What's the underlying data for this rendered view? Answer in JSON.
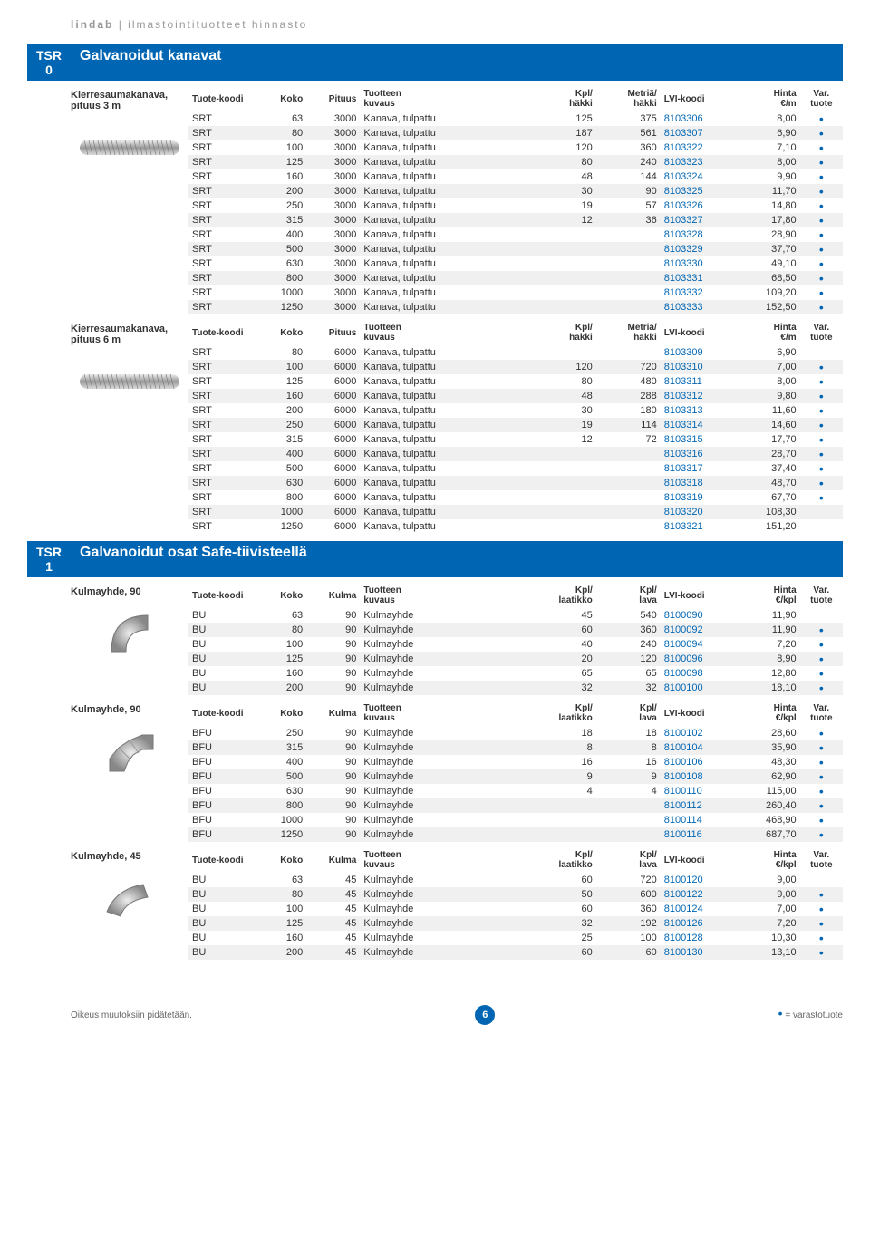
{
  "header": {
    "brand": "lindab",
    "sep": "|",
    "sub": "ilmastointituotteet hinnasto"
  },
  "footer": {
    "left": "Oikeus muutoksiin pidätetään.",
    "page": "6",
    "legend_dot": "•",
    "legend_text": "= varastotuote"
  },
  "sections": [
    {
      "code": "TSR 0",
      "title": "Galvanoidut kanavat"
    },
    {
      "code": "TSR 1",
      "title": "Galvanoidut osat Safe-tiivisteellä"
    }
  ],
  "tables": [
    {
      "label": "Kierresaumakanava, pituus 3 m",
      "img": "spiral",
      "headers": [
        "Tuote-koodi",
        "Koko",
        "Pituus",
        "Tuotteen kuvaus",
        "Kpl/ häkki",
        "Metriä/ häkki",
        "LVI-koodi",
        "Hinta €/m",
        "Var. tuote"
      ],
      "rows": [
        [
          "SRT",
          "63",
          "3000",
          "Kanava, tulpattu",
          "125",
          "375",
          "8103306",
          "8,00",
          "•"
        ],
        [
          "SRT",
          "80",
          "3000",
          "Kanava, tulpattu",
          "187",
          "561",
          "8103307",
          "6,90",
          "•"
        ],
        [
          "SRT",
          "100",
          "3000",
          "Kanava, tulpattu",
          "120",
          "360",
          "8103322",
          "7,10",
          "•"
        ],
        [
          "SRT",
          "125",
          "3000",
          "Kanava, tulpattu",
          "80",
          "240",
          "8103323",
          "8,00",
          "•"
        ],
        [
          "SRT",
          "160",
          "3000",
          "Kanava, tulpattu",
          "48",
          "144",
          "8103324",
          "9,90",
          "•"
        ],
        [
          "SRT",
          "200",
          "3000",
          "Kanava, tulpattu",
          "30",
          "90",
          "8103325",
          "11,70",
          "•"
        ],
        [
          "SRT",
          "250",
          "3000",
          "Kanava, tulpattu",
          "19",
          "57",
          "8103326",
          "14,80",
          "•"
        ],
        [
          "SRT",
          "315",
          "3000",
          "Kanava, tulpattu",
          "12",
          "36",
          "8103327",
          "17,80",
          "•"
        ],
        [
          "SRT",
          "400",
          "3000",
          "Kanava, tulpattu",
          "",
          "",
          "8103328",
          "28,90",
          "•"
        ],
        [
          "SRT",
          "500",
          "3000",
          "Kanava, tulpattu",
          "",
          "",
          "8103329",
          "37,70",
          "•"
        ],
        [
          "SRT",
          "630",
          "3000",
          "Kanava, tulpattu",
          "",
          "",
          "8103330",
          "49,10",
          "•"
        ],
        [
          "SRT",
          "800",
          "3000",
          "Kanava, tulpattu",
          "",
          "",
          "8103331",
          "68,50",
          "•"
        ],
        [
          "SRT",
          "1000",
          "3000",
          "Kanava, tulpattu",
          "",
          "",
          "8103332",
          "109,20",
          "•"
        ],
        [
          "SRT",
          "1250",
          "3000",
          "Kanava, tulpattu",
          "",
          "",
          "8103333",
          "152,50",
          "•"
        ]
      ]
    },
    {
      "label": "Kierresaumakanava, pituus 6 m",
      "img": "spiral",
      "headers": [
        "Tuote-koodi",
        "Koko",
        "Pituus",
        "Tuotteen kuvaus",
        "Kpl/ häkki",
        "Metriä/ häkki",
        "LVI-koodi",
        "Hinta €/m",
        "Var. tuote"
      ],
      "rows": [
        [
          "SRT",
          "80",
          "6000",
          "Kanava, tulpattu",
          "",
          "",
          "8103309",
          "6,90",
          ""
        ],
        [
          "SRT",
          "100",
          "6000",
          "Kanava, tulpattu",
          "120",
          "720",
          "8103310",
          "7,00",
          "•"
        ],
        [
          "SRT",
          "125",
          "6000",
          "Kanava, tulpattu",
          "80",
          "480",
          "8103311",
          "8,00",
          "•"
        ],
        [
          "SRT",
          "160",
          "6000",
          "Kanava, tulpattu",
          "48",
          "288",
          "8103312",
          "9,80",
          "•"
        ],
        [
          "SRT",
          "200",
          "6000",
          "Kanava, tulpattu",
          "30",
          "180",
          "8103313",
          "11,60",
          "•"
        ],
        [
          "SRT",
          "250",
          "6000",
          "Kanava, tulpattu",
          "19",
          "114",
          "8103314",
          "14,60",
          "•"
        ],
        [
          "SRT",
          "315",
          "6000",
          "Kanava, tulpattu",
          "12",
          "72",
          "8103315",
          "17,70",
          "•"
        ],
        [
          "SRT",
          "400",
          "6000",
          "Kanava, tulpattu",
          "",
          "",
          "8103316",
          "28,70",
          "•"
        ],
        [
          "SRT",
          "500",
          "6000",
          "Kanava, tulpattu",
          "",
          "",
          "8103317",
          "37,40",
          "•"
        ],
        [
          "SRT",
          "630",
          "6000",
          "Kanava, tulpattu",
          "",
          "",
          "8103318",
          "48,70",
          "•"
        ],
        [
          "SRT",
          "800",
          "6000",
          "Kanava, tulpattu",
          "",
          "",
          "8103319",
          "67,70",
          "•"
        ],
        [
          "SRT",
          "1000",
          "6000",
          "Kanava, tulpattu",
          "",
          "",
          "8103320",
          "108,30",
          ""
        ],
        [
          "SRT",
          "1250",
          "6000",
          "Kanava, tulpattu",
          "",
          "",
          "8103321",
          "151,20",
          ""
        ]
      ]
    },
    {
      "label": "Kulmayhde, 90",
      "img": "elbow90a",
      "headers": [
        "Tuote-koodi",
        "Koko",
        "Kulma",
        "Tuotteen kuvaus",
        "Kpl/ laatikko",
        "Kpl/ lava",
        "LVI-koodi",
        "Hinta €/kpl",
        "Var. tuote"
      ],
      "rows": [
        [
          "BU",
          "63",
          "90",
          "Kulmayhde",
          "45",
          "540",
          "8100090",
          "11,90",
          ""
        ],
        [
          "BU",
          "80",
          "90",
          "Kulmayhde",
          "60",
          "360",
          "8100092",
          "11,90",
          "•"
        ],
        [
          "BU",
          "100",
          "90",
          "Kulmayhde",
          "40",
          "240",
          "8100094",
          "7,20",
          "•"
        ],
        [
          "BU",
          "125",
          "90",
          "Kulmayhde",
          "20",
          "120",
          "8100096",
          "8,90",
          "•"
        ],
        [
          "BU",
          "160",
          "90",
          "Kulmayhde",
          "65",
          "65",
          "8100098",
          "12,80",
          "•"
        ],
        [
          "BU",
          "200",
          "90",
          "Kulmayhde",
          "32",
          "32",
          "8100100",
          "18,10",
          "•"
        ]
      ]
    },
    {
      "label": "Kulmayhde, 90",
      "img": "elbow90b",
      "headers": [
        "Tuote-koodi",
        "Koko",
        "Kulma",
        "Tuotteen kuvaus",
        "Kpl/ laatikko",
        "Kpl/ lava",
        "LVI-koodi",
        "Hinta €/kpl",
        "Var. tuote"
      ],
      "rows": [
        [
          "BFU",
          "250",
          "90",
          "Kulmayhde",
          "18",
          "18",
          "8100102",
          "28,60",
          "•"
        ],
        [
          "BFU",
          "315",
          "90",
          "Kulmayhde",
          "8",
          "8",
          "8100104",
          "35,90",
          "•"
        ],
        [
          "BFU",
          "400",
          "90",
          "Kulmayhde",
          "16",
          "16",
          "8100106",
          "48,30",
          "•"
        ],
        [
          "BFU",
          "500",
          "90",
          "Kulmayhde",
          "9",
          "9",
          "8100108",
          "62,90",
          "•"
        ],
        [
          "BFU",
          "630",
          "90",
          "Kulmayhde",
          "4",
          "4",
          "8100110",
          "115,00",
          "•"
        ],
        [
          "BFU",
          "800",
          "90",
          "Kulmayhde",
          "",
          "",
          "8100112",
          "260,40",
          "•"
        ],
        [
          "BFU",
          "1000",
          "90",
          "Kulmayhde",
          "",
          "",
          "8100114",
          "468,90",
          "•"
        ],
        [
          "BFU",
          "1250",
          "90",
          "Kulmayhde",
          "",
          "",
          "8100116",
          "687,70",
          "•"
        ]
      ]
    },
    {
      "label": "Kulmayhde, 45",
      "img": "elbow45",
      "headers": [
        "Tuote-koodi",
        "Koko",
        "Kulma",
        "Tuotteen kuvaus",
        "Kpl/ laatikko",
        "Kpl/ lava",
        "LVI-koodi",
        "Hinta €/kpl",
        "Var. tuote"
      ],
      "rows": [
        [
          "BU",
          "63",
          "45",
          "Kulmayhde",
          "60",
          "720",
          "8100120",
          "9,00",
          ""
        ],
        [
          "BU",
          "80",
          "45",
          "Kulmayhde",
          "50",
          "600",
          "8100122",
          "9,00",
          "•"
        ],
        [
          "BU",
          "100",
          "45",
          "Kulmayhde",
          "60",
          "360",
          "8100124",
          "7,00",
          "•"
        ],
        [
          "BU",
          "125",
          "45",
          "Kulmayhde",
          "32",
          "192",
          "8100126",
          "7,20",
          "•"
        ],
        [
          "BU",
          "160",
          "45",
          "Kulmayhde",
          "25",
          "100",
          "8100128",
          "10,30",
          "•"
        ],
        [
          "BU",
          "200",
          "45",
          "Kulmayhde",
          "60",
          "60",
          "8100130",
          "13,10",
          "•"
        ]
      ]
    }
  ]
}
